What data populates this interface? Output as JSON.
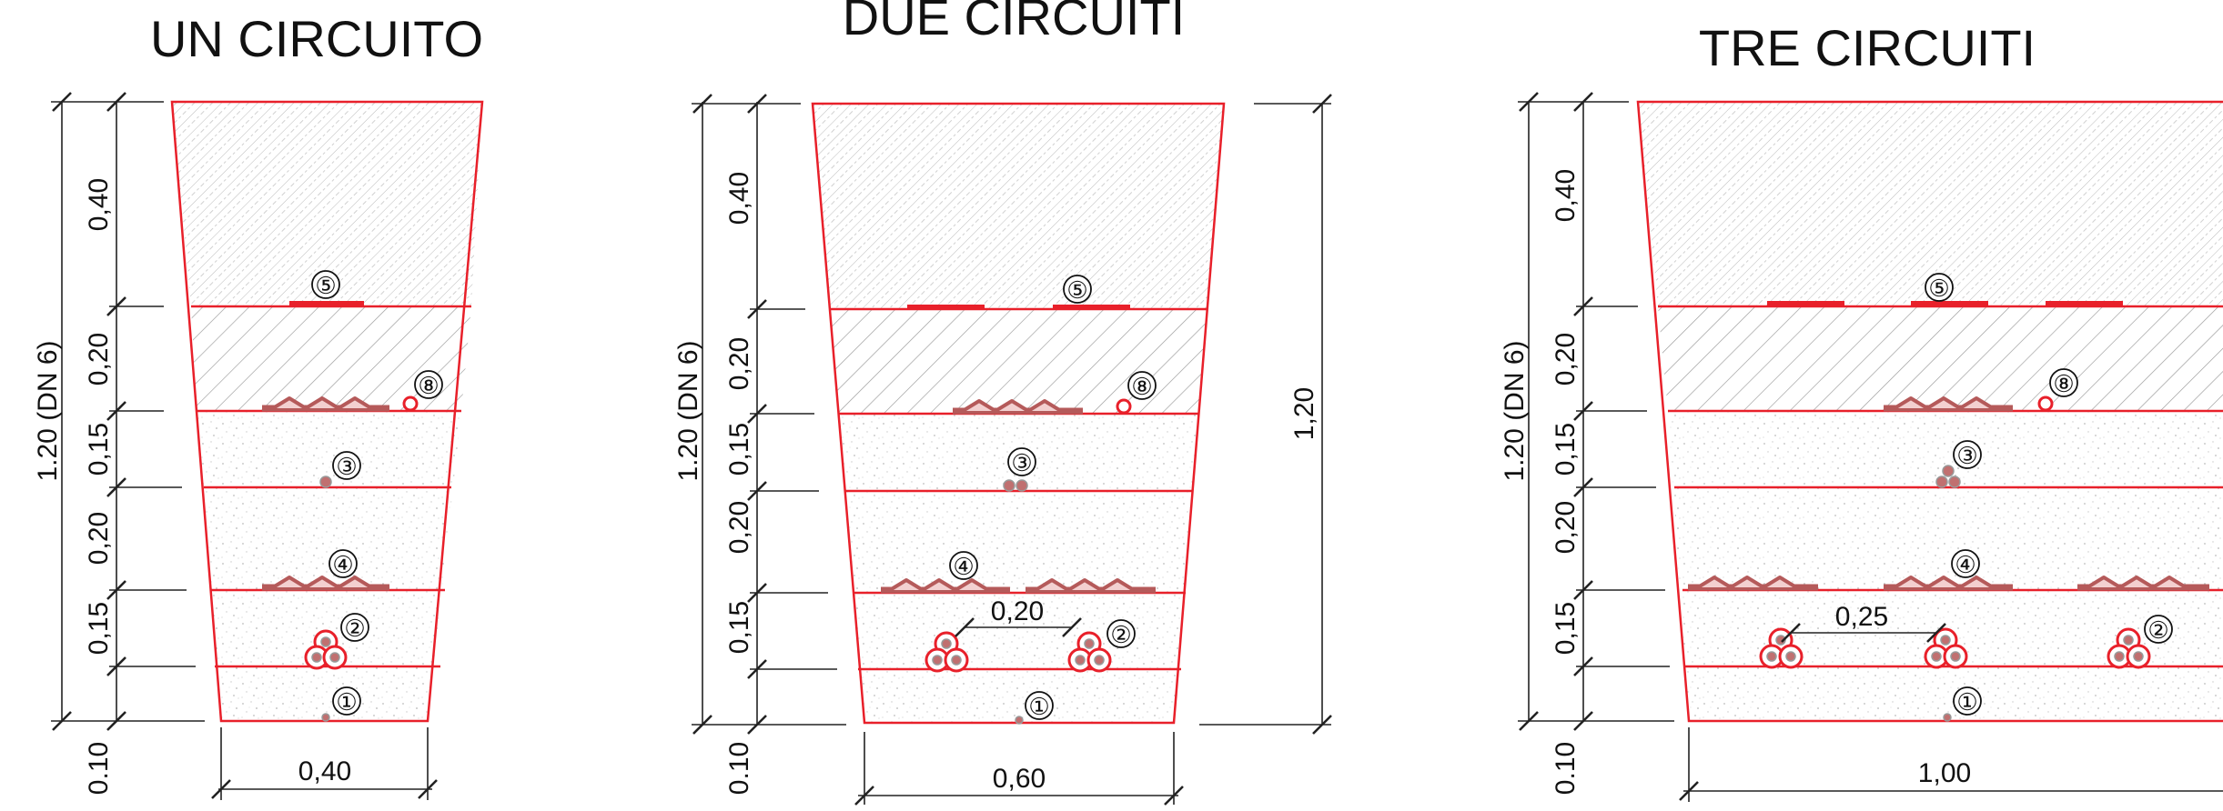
{
  "sections": [
    {
      "title": "UN CIRCUITO",
      "depth_label": "1.20 (DN 6)",
      "layer_labels": [
        "0,40",
        "0,20",
        "0,15",
        "0,20",
        "0,15",
        "0.10"
      ],
      "width_label": "0,40",
      "spacing_label": "",
      "right_label": "",
      "markers": [
        "⑤",
        "⑧",
        "③",
        "④",
        "②",
        "①"
      ],
      "circuits": 1
    },
    {
      "title": "DUE CIRCUITI",
      "depth_label": "1.20 (DN 6)",
      "layer_labels": [
        "0,40",
        "0,20",
        "0,15",
        "0,20",
        "0,15",
        "0.10"
      ],
      "width_label": "0,60",
      "spacing_label": "0,20",
      "right_label": "1,20",
      "markers": [
        "⑤",
        "⑧",
        "③",
        "④",
        "②",
        "①"
      ],
      "circuits": 2
    },
    {
      "title": "TRE CIRCUITI",
      "depth_label": "1.20 (DN 6)",
      "layer_labels": [
        "0,40",
        "0,20",
        "0,15",
        "0,20",
        "0,15",
        "0.10"
      ],
      "width_label": "1,00",
      "spacing_label": "0,25",
      "right_label": "",
      "markers": [
        "⑤",
        "⑧",
        "③",
        "④",
        "②",
        "①"
      ],
      "circuits": 3
    }
  ],
  "colors": {
    "trench": "#e8202a",
    "cable_fill": "#c07070",
    "warning_net": "#b55a5a"
  }
}
